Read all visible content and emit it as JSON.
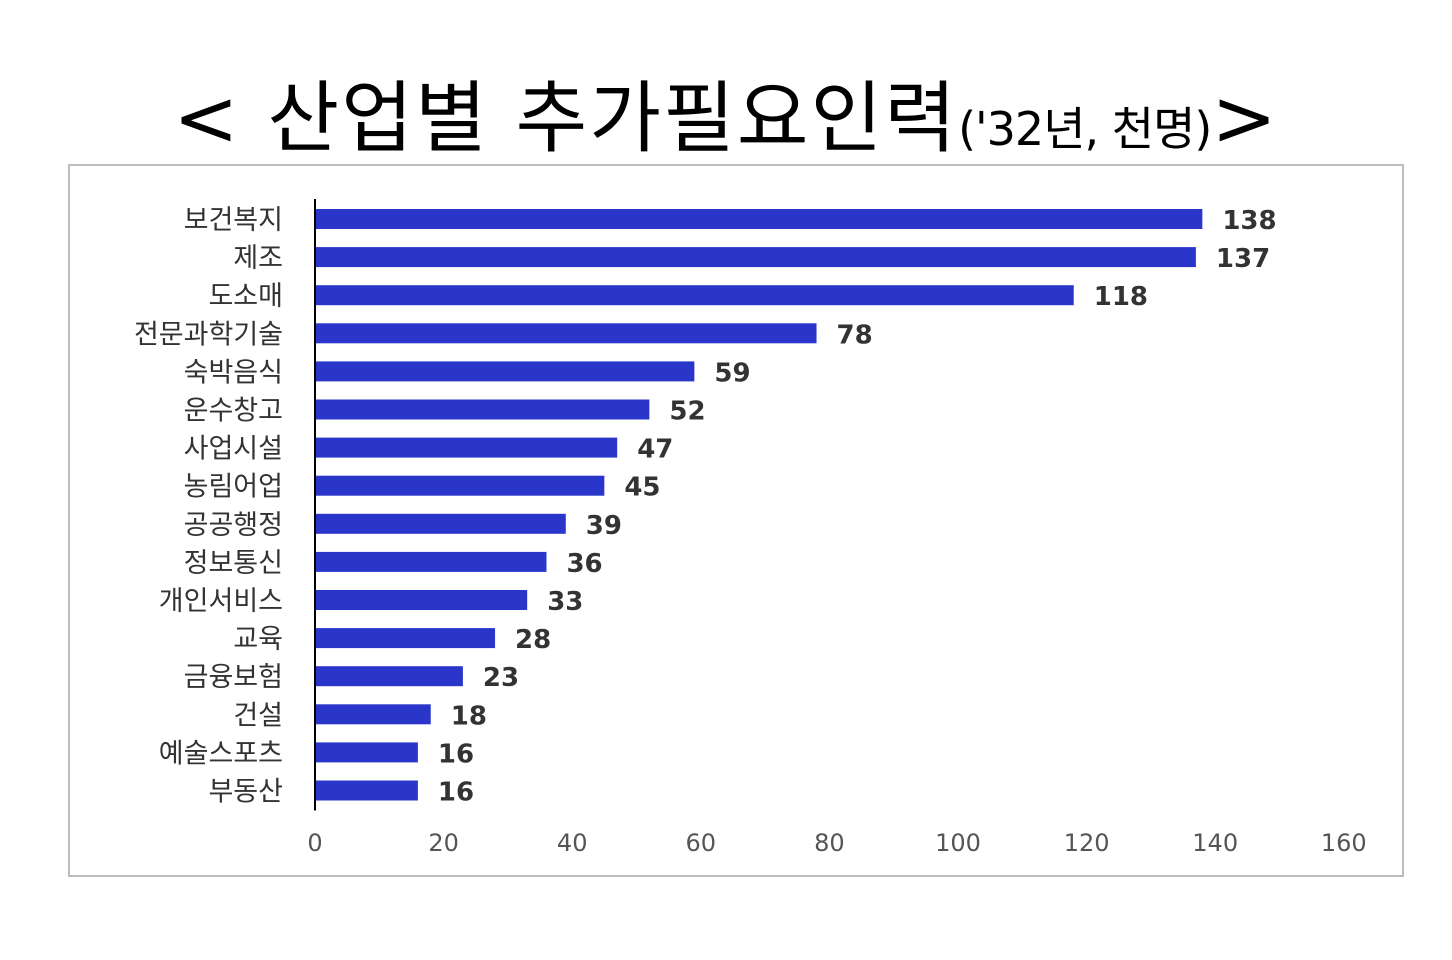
{
  "title": {
    "main": "< 산업별 추가필요인력",
    "sub": "('32년, 천명)",
    "end": ">"
  },
  "chart_data": {
    "type": "bar",
    "orientation": "horizontal",
    "categories": [
      "보건복지",
      "제조",
      "도소매",
      "전문과학기술",
      "숙박음식",
      "운수창고",
      "사업시설",
      "농림어업",
      "공공행정",
      "정보통신",
      "개인서비스",
      "교육",
      "금융보험",
      "건설",
      "예술스포츠",
      "부동산"
    ],
    "values": [
      138,
      137,
      118,
      78,
      59,
      52,
      47,
      45,
      39,
      36,
      33,
      28,
      23,
      18,
      16,
      16
    ],
    "xlim": [
      0,
      160
    ],
    "xticks": [
      "0",
      "20",
      "40",
      "60",
      "80",
      "100",
      "120",
      "140",
      "160"
    ],
    "grid": false,
    "legend": false,
    "bar_color": "#2a35c9"
  }
}
